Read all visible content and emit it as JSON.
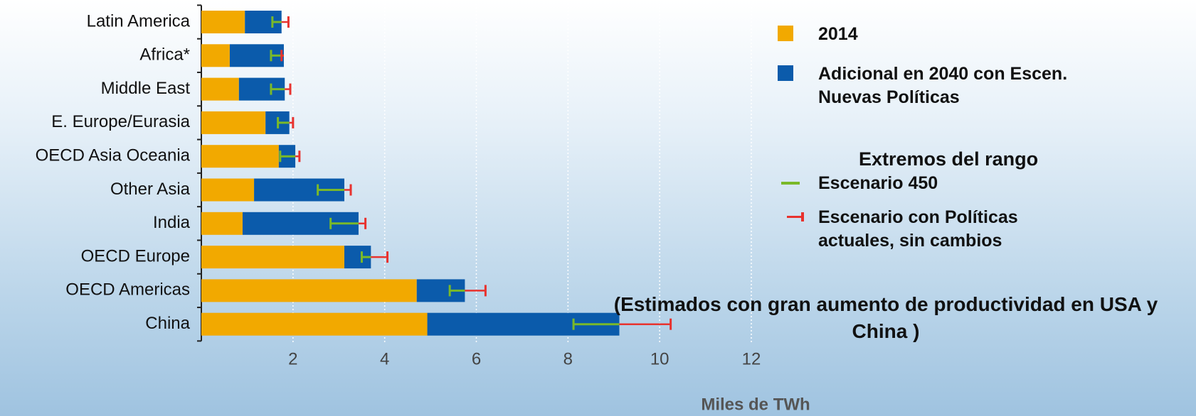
{
  "chart_data": {
    "type": "bar",
    "orientation": "horizontal",
    "stacked": true,
    "categories": [
      "Latin America",
      "Africa*",
      "Middle East",
      "E. Europe/Eurasia",
      "OECD Asia Oceania",
      "Other Asia",
      "India",
      "OECD Europe",
      "OECD Americas",
      "China"
    ],
    "series": [
      {
        "name": "2014",
        "color": "#f2a900",
        "values": [
          0.95,
          0.62,
          0.82,
          1.4,
          1.69,
          1.15,
          0.9,
          3.12,
          4.7,
          4.93
        ]
      },
      {
        "name": "Adicional en 2040 con Escen. Nuevas Políticas",
        "color": "#0b5bab",
        "values": [
          0.8,
          1.18,
          1.0,
          0.52,
          0.36,
          1.97,
          2.53,
          0.58,
          1.05,
          4.19
        ]
      }
    ],
    "range_title": "Extremos del rango",
    "ranges": [
      {
        "name": "Escenario 450",
        "color": "#7ab929",
        "values": [
          1.55,
          1.52,
          1.52,
          1.67,
          1.72,
          2.54,
          2.82,
          3.5,
          5.42,
          8.12
        ]
      },
      {
        "name": "Escenario  con Políticas actuales, sin cambios",
        "color": "#e8322e",
        "values": [
          1.9,
          1.75,
          1.94,
          2.0,
          2.14,
          3.26,
          3.58,
          4.06,
          6.2,
          10.24
        ]
      }
    ],
    "xlim": [
      0,
      12
    ],
    "xticks": [
      2,
      4,
      6,
      8,
      10,
      12
    ],
    "grid": true,
    "xlabel": "Miles de TWh",
    "annotation": "(Estimados con gran aumento de productividad en USA y  China )"
  }
}
